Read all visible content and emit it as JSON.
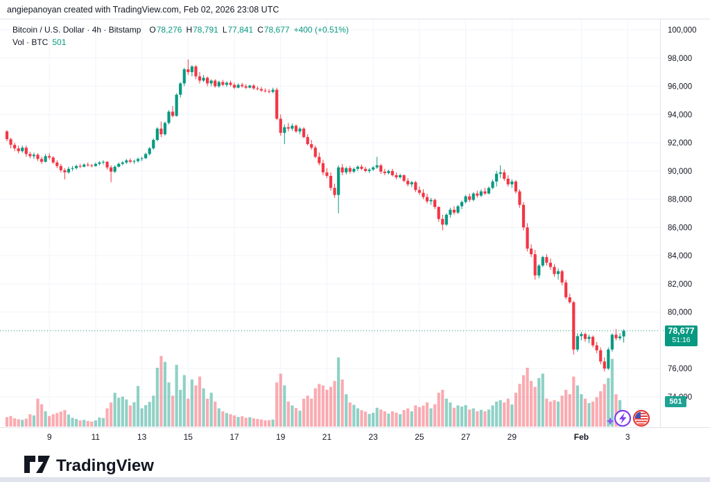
{
  "attribution": "angiepanoyan created with TradingView.com, Feb 02, 2026 23:08 UTC",
  "header": {
    "symbol_title": "Bitcoin / U.S. Dollar · 4h · Bitstamp",
    "o_label": "O",
    "o_value": "78,276",
    "h_label": "H",
    "h_value": "78,791",
    "l_label": "L",
    "l_value": "77,841",
    "c_label": "C",
    "c_value": "78,677",
    "change": "+400 (+0.51%)",
    "volume_label": "Vol · BTC",
    "volume_value": "501"
  },
  "price_axis": {
    "labels": [
      "100,000",
      "98,000",
      "96,000",
      "94,000",
      "92,000",
      "90,000",
      "88,000",
      "86,000",
      "84,000",
      "82,000",
      "80,000",
      "76,000",
      "74,000"
    ],
    "values": [
      100000,
      98000,
      96000,
      94000,
      92000,
      90000,
      88000,
      86000,
      84000,
      82000,
      80000,
      76000,
      74000
    ],
    "price_badge": {
      "price": "78,677",
      "countdown": "51:16"
    },
    "volume_badge": "501"
  },
  "time_axis": {
    "ticks": [
      {
        "label": "9",
        "index": 11
      },
      {
        "label": "11",
        "index": 23
      },
      {
        "label": "13",
        "index": 35
      },
      {
        "label": "15",
        "index": 47
      },
      {
        "label": "17",
        "index": 59
      },
      {
        "label": "19",
        "index": 71
      },
      {
        "label": "21",
        "index": 83
      },
      {
        "label": "23",
        "index": 95
      },
      {
        "label": "25",
        "index": 107
      },
      {
        "label": "27",
        "index": 119
      },
      {
        "label": "29",
        "index": 131
      },
      {
        "label": "Feb",
        "index": 149,
        "bold": true
      },
      {
        "label": "3",
        "index": 161
      }
    ]
  },
  "colors": {
    "up": "#089981",
    "down": "#f23645",
    "volume_up": "rgba(8,153,129,0.45)",
    "volume_down": "rgba(242,54,69,0.42)",
    "grid": "#f0f3fa",
    "axis_border": "#e0e3eb",
    "axis_text": "#131722",
    "dotted_price_line": "#089981",
    "badge": "#089981",
    "event_purple": "#7c3aed",
    "event_red": "#e53935",
    "logo_dark": "#131722"
  },
  "branding": {
    "logo_text": "TradingView"
  },
  "events": [
    {
      "name": "lightning-event-icon"
    },
    {
      "name": "us-flag-event-icon"
    }
  ],
  "chart_data": {
    "type": "candlestick+volume",
    "title": "Bitcoin / U.S. Dollar",
    "interval": "4h",
    "exchange": "Bitstamp",
    "visible_dates": "Jan 7 - Feb 3",
    "ylim_shown": [
      74000,
      100500
    ],
    "grid": true,
    "price_grid_step": 2000,
    "last_bar": {
      "open": 78276,
      "high": 78791,
      "low": 77841,
      "close": 78677,
      "volume_btc": 501,
      "change": "+400 (+0.51%)",
      "bar_countdown": "51:16"
    },
    "volume_axis_estimated_max_btc": 2400,
    "candles_ohlcv": [
      [
        92800,
        92900,
        92100,
        92250,
        320
      ],
      [
        92250,
        92350,
        91600,
        91850,
        360
      ],
      [
        91850,
        92000,
        91400,
        91600,
        280
      ],
      [
        91600,
        91800,
        91250,
        91400,
        250
      ],
      [
        91400,
        91800,
        91300,
        91650,
        230
      ],
      [
        91650,
        91800,
        91000,
        91200,
        270
      ],
      [
        91200,
        91350,
        90900,
        91050,
        420
      ],
      [
        91050,
        91300,
        90850,
        91150,
        380
      ],
      [
        91150,
        91250,
        90700,
        90850,
        950
      ],
      [
        90850,
        91000,
        90500,
        90650,
        760
      ],
      [
        90650,
        91200,
        90600,
        91050,
        520
      ],
      [
        91050,
        91250,
        90800,
        90950,
        360
      ],
      [
        90950,
        91050,
        90500,
        90600,
        420
      ],
      [
        90600,
        90750,
        90200,
        90350,
        460
      ],
      [
        90350,
        90500,
        89900,
        90050,
        510
      ],
      [
        90050,
        90200,
        89400,
        89900,
        560
      ],
      [
        89900,
        90300,
        89800,
        90150,
        410
      ],
      [
        90150,
        90350,
        90000,
        90200,
        300
      ],
      [
        90200,
        90450,
        90100,
        90350,
        260
      ],
      [
        90350,
        90500,
        90200,
        90300,
        210
      ],
      [
        90300,
        90550,
        90250,
        90450,
        230
      ],
      [
        90450,
        90600,
        90300,
        90400,
        190
      ],
      [
        90400,
        90500,
        90250,
        90350,
        170
      ],
      [
        90350,
        90600,
        90300,
        90500,
        210
      ],
      [
        90500,
        90700,
        90400,
        90600,
        310
      ],
      [
        90600,
        90750,
        90450,
        90650,
        290
      ],
      [
        90650,
        90700,
        90100,
        90250,
        620
      ],
      [
        90250,
        90400,
        89200,
        89950,
        820
      ],
      [
        89950,
        90400,
        89850,
        90300,
        1150
      ],
      [
        90300,
        90600,
        90250,
        90500,
        980
      ],
      [
        90500,
        90700,
        90400,
        90600,
        1020
      ],
      [
        90600,
        90850,
        90500,
        90750,
        920
      ],
      [
        90750,
        90900,
        90550,
        90650,
        720
      ],
      [
        90650,
        90800,
        90500,
        90700,
        830
      ],
      [
        90700,
        90950,
        90600,
        90850,
        1380
      ],
      [
        90850,
        91000,
        90700,
        90900,
        620
      ],
      [
        90900,
        91300,
        90850,
        91200,
        730
      ],
      [
        91200,
        91700,
        91100,
        91600,
        840
      ],
      [
        91600,
        92300,
        91500,
        92200,
        1050
      ],
      [
        92200,
        93100,
        92100,
        93000,
        2000
      ],
      [
        93000,
        93500,
        92400,
        92600,
        2400
      ],
      [
        92600,
        93500,
        92500,
        93400,
        2200
      ],
      [
        93400,
        94300,
        93300,
        94200,
        1500
      ],
      [
        94200,
        94600,
        93800,
        93900,
        1050
      ],
      [
        93900,
        95500,
        93850,
        95400,
        2100
      ],
      [
        95400,
        96300,
        95200,
        96200,
        1250
      ],
      [
        96200,
        97300,
        96000,
        97200,
        1750
      ],
      [
        97200,
        97900,
        96800,
        97000,
        950
      ],
      [
        97000,
        97500,
        96700,
        97400,
        1600
      ],
      [
        97400,
        97500,
        96500,
        96700,
        1400
      ],
      [
        96700,
        97000,
        96200,
        96400,
        1700
      ],
      [
        96400,
        96800,
        96300,
        96600,
        1300
      ],
      [
        96600,
        96700,
        96000,
        96200,
        950
      ],
      [
        96200,
        96500,
        96000,
        96400,
        1150
      ],
      [
        96400,
        96500,
        95900,
        96000,
        850
      ],
      [
        96000,
        96400,
        95900,
        96300,
        620
      ],
      [
        96300,
        96450,
        96000,
        96100,
        520
      ],
      [
        96100,
        96350,
        95950,
        96250,
        460
      ],
      [
        96250,
        96400,
        96000,
        96100,
        420
      ],
      [
        96100,
        96250,
        95800,
        95900,
        380
      ],
      [
        95900,
        96200,
        95850,
        96100,
        330
      ],
      [
        96100,
        96250,
        95900,
        96000,
        350
      ],
      [
        96000,
        96150,
        95800,
        95900,
        300
      ],
      [
        95900,
        96100,
        95850,
        96050,
        320
      ],
      [
        96050,
        96150,
        95750,
        95850,
        280
      ],
      [
        95850,
        96000,
        95700,
        95800,
        260
      ],
      [
        95800,
        95950,
        95600,
        95700,
        240
      ],
      [
        95700,
        95850,
        95550,
        95650,
        210
      ],
      [
        95650,
        95800,
        95500,
        95600,
        220
      ],
      [
        95600,
        95900,
        95500,
        95750,
        240
      ],
      [
        95750,
        95900,
        93600,
        93700,
        1500
      ],
      [
        93700,
        94000,
        92500,
        92700,
        1800
      ],
      [
        92700,
        93300,
        91900,
        93100,
        1400
      ],
      [
        93100,
        93400,
        92800,
        93000,
        850
      ],
      [
        93000,
        93350,
        92850,
        93200,
        720
      ],
      [
        93200,
        93300,
        92700,
        92800,
        630
      ],
      [
        92800,
        93100,
        92600,
        93000,
        540
      ],
      [
        93000,
        93100,
        92300,
        92400,
        950
      ],
      [
        92400,
        92600,
        91800,
        91900,
        1050
      ],
      [
        91900,
        92200,
        91500,
        91650,
        950
      ],
      [
        91650,
        91800,
        90900,
        91000,
        1300
      ],
      [
        91000,
        91300,
        90400,
        90550,
        1450
      ],
      [
        90550,
        90800,
        89700,
        89900,
        1400
      ],
      [
        89900,
        90200,
        89500,
        89650,
        1250
      ],
      [
        89650,
        89900,
        88600,
        88800,
        1350
      ],
      [
        88800,
        89100,
        88100,
        88300,
        1550
      ],
      [
        88300,
        90400,
        87000,
        90250,
        2350
      ],
      [
        90250,
        90500,
        89700,
        89900,
        1600
      ],
      [
        89900,
        90300,
        89750,
        90200,
        1100
      ],
      [
        90200,
        90350,
        89800,
        89950,
        820
      ],
      [
        89950,
        90250,
        89850,
        90150,
        740
      ],
      [
        90150,
        90400,
        90000,
        90300,
        620
      ],
      [
        90300,
        90450,
        90050,
        90150,
        560
      ],
      [
        90150,
        90300,
        89900,
        90000,
        510
      ],
      [
        90000,
        90200,
        89850,
        90100,
        430
      ],
      [
        90100,
        90350,
        90000,
        90250,
        470
      ],
      [
        90250,
        91000,
        90150,
        90400,
        640
      ],
      [
        90400,
        90500,
        89800,
        89950,
        580
      ],
      [
        89950,
        90150,
        89700,
        89850,
        520
      ],
      [
        89850,
        90100,
        89750,
        90000,
        440
      ],
      [
        90000,
        90150,
        89600,
        89700,
        520
      ],
      [
        89700,
        89900,
        89400,
        89550,
        470
      ],
      [
        89550,
        89800,
        89450,
        89700,
        420
      ],
      [
        89700,
        89750,
        89200,
        89300,
        560
      ],
      [
        89300,
        89500,
        88900,
        89050,
        620
      ],
      [
        89050,
        89300,
        88850,
        89200,
        520
      ],
      [
        89200,
        89300,
        88500,
        88650,
        720
      ],
      [
        88650,
        88900,
        88300,
        88450,
        660
      ],
      [
        88450,
        88700,
        88000,
        88150,
        710
      ],
      [
        88150,
        88400,
        87700,
        87850,
        820
      ],
      [
        87850,
        88100,
        87600,
        87950,
        620
      ],
      [
        87950,
        88050,
        87300,
        87450,
        760
      ],
      [
        87450,
        87500,
        86400,
        86600,
        1150
      ],
      [
        86600,
        86900,
        85800,
        86200,
        1250
      ],
      [
        86200,
        87000,
        86100,
        86900,
        950
      ],
      [
        86900,
        87400,
        86700,
        87250,
        820
      ],
      [
        87250,
        87500,
        86900,
        87050,
        640
      ],
      [
        87050,
        87600,
        86950,
        87500,
        720
      ],
      [
        87500,
        87900,
        87300,
        87800,
        680
      ],
      [
        87800,
        88300,
        87700,
        88200,
        730
      ],
      [
        88200,
        88400,
        87800,
        87950,
        580
      ],
      [
        87950,
        88500,
        87850,
        88400,
        620
      ],
      [
        88400,
        88600,
        88100,
        88250,
        520
      ],
      [
        88250,
        88700,
        88150,
        88550,
        570
      ],
      [
        88550,
        88800,
        88300,
        88400,
        520
      ],
      [
        88400,
        88900,
        88350,
        88800,
        580
      ],
      [
        88800,
        89400,
        88700,
        89250,
        720
      ],
      [
        89250,
        90000,
        88900,
        89800,
        850
      ],
      [
        89800,
        90400,
        89500,
        89900,
        900
      ],
      [
        89900,
        90100,
        89300,
        89450,
        820
      ],
      [
        89450,
        89700,
        88900,
        89050,
        950
      ],
      [
        89050,
        89400,
        88800,
        89250,
        750
      ],
      [
        89250,
        89350,
        88400,
        88550,
        1150
      ],
      [
        88550,
        88700,
        87400,
        87600,
        1450
      ],
      [
        87600,
        87800,
        85800,
        86000,
        1750
      ],
      [
        86000,
        86300,
        84300,
        84500,
        2000
      ],
      [
        84500,
        84800,
        83900,
        84100,
        1550
      ],
      [
        84100,
        84400,
        82300,
        82600,
        1350
      ],
      [
        82600,
        83400,
        82400,
        83300,
        1650
      ],
      [
        83300,
        84000,
        83200,
        83900,
        1800
      ],
      [
        83900,
        84100,
        83300,
        83500,
        950
      ],
      [
        83500,
        83800,
        83000,
        83200,
        850
      ],
      [
        83200,
        83400,
        82500,
        82700,
        900
      ],
      [
        82700,
        83100,
        82300,
        82900,
        850
      ],
      [
        82900,
        83000,
        81900,
        82100,
        1050
      ],
      [
        82100,
        82300,
        80900,
        81050,
        1250
      ],
      [
        81050,
        81300,
        80600,
        80700,
        1100
      ],
      [
        80700,
        80800,
        77000,
        77350,
        1700
      ],
      [
        77350,
        78500,
        77200,
        78300,
        1400
      ],
      [
        78300,
        78600,
        78000,
        78450,
        1100
      ],
      [
        78450,
        78550,
        77900,
        78100,
        950
      ],
      [
        78100,
        78400,
        77800,
        78250,
        800
      ],
      [
        78250,
        78350,
        77500,
        77650,
        850
      ],
      [
        77650,
        77900,
        77100,
        77300,
        1000
      ],
      [
        77300,
        77500,
        76300,
        76500,
        1200
      ],
      [
        76500,
        76800,
        75800,
        76000,
        1450
      ],
      [
        76000,
        77500,
        75900,
        77350,
        1650
      ],
      [
        77350,
        78500,
        77200,
        78400,
        2300
      ],
      [
        78400,
        78800,
        78000,
        78150,
        1100
      ],
      [
        78150,
        78500,
        78000,
        78276,
        900
      ],
      [
        78276,
        78791,
        77841,
        78677,
        501
      ]
    ]
  }
}
